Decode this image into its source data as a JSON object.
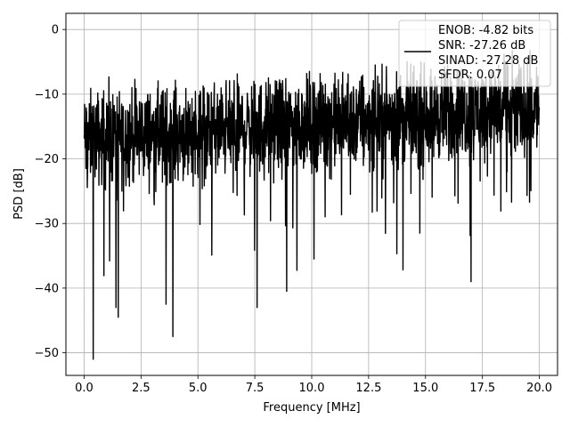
{
  "chart_data": {
    "type": "line",
    "title": "",
    "xlabel": "Frequency [MHz]",
    "ylabel": "PSD [dB]",
    "xlim": [
      -0.8,
      20.8
    ],
    "ylim": [
      -53.5,
      2.5
    ],
    "xticks": [
      0.0,
      2.5,
      5.0,
      7.5,
      10.0,
      12.5,
      15.0,
      17.5,
      20.0
    ],
    "xtick_labels": [
      "0.0",
      "2.5",
      "5.0",
      "7.5",
      "10.0",
      "12.5",
      "15.0",
      "17.5",
      "20.0"
    ],
    "yticks": [
      0,
      -10,
      -20,
      -30,
      -40,
      -50
    ],
    "ytick_labels": [
      "0",
      "−10",
      "−20",
      "−30",
      "−40",
      "−50"
    ],
    "grid": true,
    "legend_position": "top-right",
    "legend": {
      "lines": [
        "ENOB: -4.82 bits",
        "SNR: -27.26 dB",
        "SINAD: -27.28 dB",
        "SFDR: 0.07"
      ]
    },
    "series": [
      {
        "color": "#000000",
        "x_range": [
          0.0,
          20.0
        ],
        "noise_floor_start_db": -17,
        "noise_floor_end_db": -12,
        "max_db": -3,
        "notable_minima": [
          {
            "x": 0.4,
            "y": -51
          },
          {
            "x": 1.4,
            "y": -43
          },
          {
            "x": 1.5,
            "y": -44.5
          },
          {
            "x": 3.6,
            "y": -42.5
          },
          {
            "x": 3.9,
            "y": -47.5
          },
          {
            "x": 7.6,
            "y": -43
          },
          {
            "x": 8.9,
            "y": -40.5
          },
          {
            "x": 10.1,
            "y": -35.5
          },
          {
            "x": 17.0,
            "y": -39
          }
        ]
      }
    ]
  }
}
